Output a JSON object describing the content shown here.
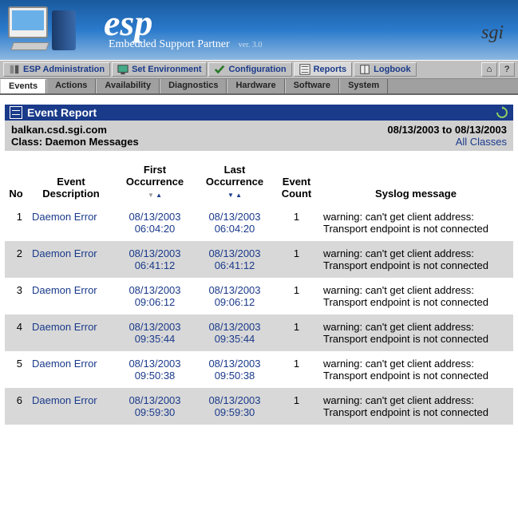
{
  "banner": {
    "product": "esp",
    "subtitle": "Embedded Support Partner",
    "version": "ver. 3.0",
    "brand": "sgi"
  },
  "topmenu": {
    "items": [
      {
        "label": "ESP Administration",
        "icon": "tools-icon"
      },
      {
        "label": "Set Environment",
        "icon": "monitor-icon"
      },
      {
        "label": "Configuration",
        "icon": "check-icon"
      },
      {
        "label": "Reports",
        "icon": "list-icon",
        "active": true
      },
      {
        "label": "Logbook",
        "icon": "book-icon"
      }
    ],
    "home_label": "⌂",
    "help_label": "?"
  },
  "tabs": {
    "items": [
      {
        "label": "Events",
        "active": true
      },
      {
        "label": "Actions"
      },
      {
        "label": "Availability"
      },
      {
        "label": "Diagnostics"
      },
      {
        "label": "Hardware"
      },
      {
        "label": "Software"
      },
      {
        "label": "System"
      }
    ]
  },
  "report": {
    "title": "Event Report",
    "host": "balkan.csd.sgi.com",
    "date_range": "08/13/2003 to 08/13/2003",
    "class_label": "Class: ",
    "class_value": "Daemon Messages",
    "all_classes": "All Classes",
    "columns": {
      "no": "No",
      "desc": "Event Description",
      "first": "First Occurrence",
      "last": "Last Occurrence",
      "count": "Event Count",
      "msg": "Syslog message"
    },
    "rows": [
      {
        "no": "1",
        "desc": "Daemon Error",
        "first_d": "08/13/2003",
        "first_t": "06:04:20",
        "last_d": "08/13/2003",
        "last_t": "06:04:20",
        "count": "1",
        "msg": "warning: can't get client address: Transport endpoint is not connected"
      },
      {
        "no": "2",
        "desc": "Daemon Error",
        "first_d": "08/13/2003",
        "first_t": "06:41:12",
        "last_d": "08/13/2003",
        "last_t": "06:41:12",
        "count": "1",
        "msg": "warning: can't get client address: Transport endpoint is not connected"
      },
      {
        "no": "3",
        "desc": "Daemon Error",
        "first_d": "08/13/2003",
        "first_t": "09:06:12",
        "last_d": "08/13/2003",
        "last_t": "09:06:12",
        "count": "1",
        "msg": "warning: can't get client address: Transport endpoint is not connected"
      },
      {
        "no": "4",
        "desc": "Daemon Error",
        "first_d": "08/13/2003",
        "first_t": "09:35:44",
        "last_d": "08/13/2003",
        "last_t": "09:35:44",
        "count": "1",
        "msg": "warning: can't get client address: Transport endpoint is not connected"
      },
      {
        "no": "5",
        "desc": "Daemon Error",
        "first_d": "08/13/2003",
        "first_t": "09:50:38",
        "last_d": "08/13/2003",
        "last_t": "09:50:38",
        "count": "1",
        "msg": "warning: can't get client address: Transport endpoint is not connected"
      },
      {
        "no": "6",
        "desc": "Daemon Error",
        "first_d": "08/13/2003",
        "first_t": "09:59:30",
        "last_d": "08/13/2003",
        "last_t": "09:59:30",
        "count": "1",
        "msg": "warning: can't get client address: Transport endpoint is not connected"
      }
    ]
  },
  "colors": {
    "header_bg": "#1a3a8a",
    "link": "#1a3a8a",
    "row_alt": "#d8d8d8"
  }
}
